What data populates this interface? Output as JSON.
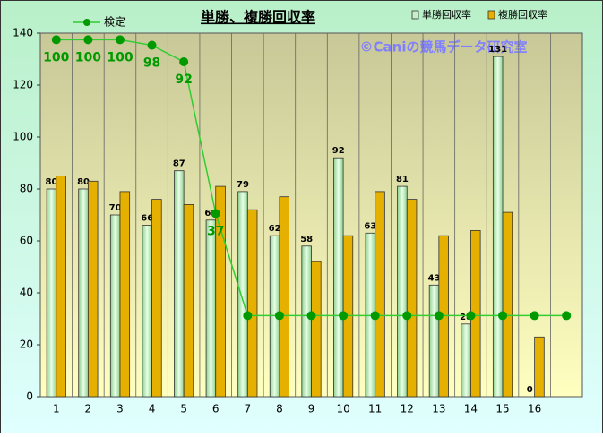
{
  "chart_data": {
    "type": "bar-line",
    "title": "単勝、複勝回収率",
    "annotation": "©Caniの競馬データ研究室",
    "categories": [
      "1",
      "2",
      "3",
      "4",
      "5",
      "6",
      "7",
      "8",
      "9",
      "10",
      "11",
      "12",
      "13",
      "14",
      "15",
      "16",
      null
    ],
    "ylim": [
      0,
      140
    ],
    "yticks": [
      0,
      20,
      40,
      60,
      80,
      100,
      120,
      140
    ],
    "y2lim": [
      -29.4,
      102.4
    ],
    "series": [
      {
        "name": "単勝回収率",
        "kind": "bar",
        "color": "#c8f0c8",
        "values": [
          80,
          80,
          70,
          66,
          87,
          68,
          79,
          62,
          58,
          92,
          63,
          81,
          43,
          28,
          131,
          0,
          null
        ],
        "value_labels": [
          "80",
          "80",
          "70",
          "66",
          "87",
          "68",
          "79",
          "62",
          "58",
          "92",
          "63",
          "81",
          "43",
          "28",
          "131",
          "0",
          null
        ]
      },
      {
        "name": "複勝回収率",
        "kind": "bar",
        "color": "#e6b000",
        "values": [
          85,
          83,
          79,
          76,
          74,
          81,
          72,
          77,
          52,
          62,
          79,
          76,
          62,
          64,
          71,
          23,
          null
        ]
      },
      {
        "name": "検定",
        "kind": "line",
        "axis": "y2",
        "color": "#33cc33",
        "marker_color": "#009900",
        "values": [
          100,
          100,
          100,
          98,
          92,
          37,
          0,
          0,
          0,
          0,
          0,
          0,
          0,
          0,
          0,
          0,
          0
        ],
        "value_labels": [
          "100",
          "100",
          "100",
          "98",
          "92",
          "37",
          null,
          null,
          null,
          null,
          null,
          null,
          null,
          null,
          null,
          null,
          null
        ]
      }
    ],
    "legend": "top"
  }
}
